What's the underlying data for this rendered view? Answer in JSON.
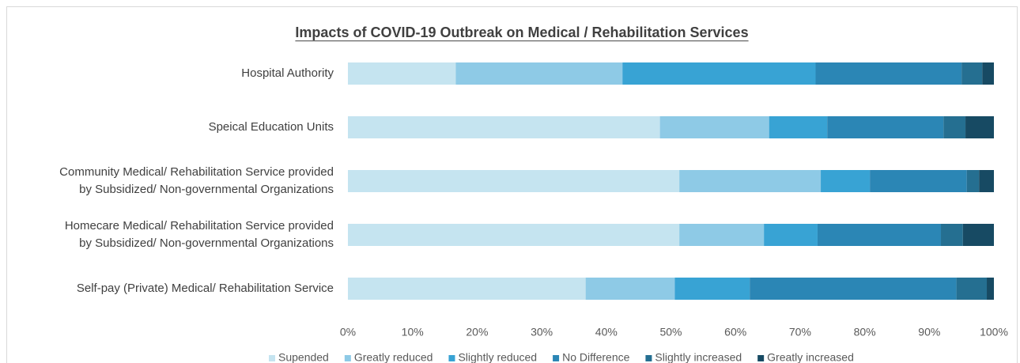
{
  "chart_data": {
    "type": "stacked_barh",
    "title": "Impacts of COVID-19 Outbreak on Medical / Rehabilitation Services",
    "categories": [
      "Hospital Authority",
      "Speical Education Units",
      "Community Medical/ Rehabilitation Service provided\nby Subsidized/ Non-governmental Organizations",
      "Homecare Medical/ Rehabilitation Service provided\nby Subsidized/ Non-governmental Organizations",
      "Self-pay (Private) Medical/ Rehabilitation Service"
    ],
    "series": [
      {
        "name": "Supended",
        "color": "#c5e4f0",
        "values": [
          16.7,
          48.3,
          51.3,
          51.3,
          36.8
        ]
      },
      {
        "name": "Greatly reduced",
        "color": "#8ecae6",
        "values": [
          25.8,
          16.9,
          21.9,
          13.1,
          13.8
        ]
      },
      {
        "name": "Slightly reduced",
        "color": "#38a3d4",
        "values": [
          29.9,
          9.0,
          7.6,
          8.3,
          11.6
        ]
      },
      {
        "name": "No Difference",
        "color": "#2b86b5",
        "values": [
          22.6,
          18.0,
          15.0,
          19.1,
          32.0
        ]
      },
      {
        "name": "Slightly increased",
        "color": "#256f91",
        "values": [
          3.2,
          3.4,
          1.9,
          3.4,
          4.7
        ]
      },
      {
        "name": "Greatly increased",
        "color": "#174a63",
        "values": [
          1.8,
          4.4,
          2.3,
          4.8,
          1.1
        ]
      }
    ],
    "xlim": [
      0,
      100
    ],
    "xticks": [
      {
        "value": 0,
        "label": "0%"
      },
      {
        "value": 10,
        "label": "10%"
      },
      {
        "value": 20,
        "label": "20%"
      },
      {
        "value": 30,
        "label": "30%"
      },
      {
        "value": 40,
        "label": "40%"
      },
      {
        "value": 50,
        "label": "50%"
      },
      {
        "value": 60,
        "label": "60%"
      },
      {
        "value": 70,
        "label": "70%"
      },
      {
        "value": 80,
        "label": "80%"
      },
      {
        "value": 90,
        "label": "90%"
      },
      {
        "value": 100,
        "label": "100%"
      }
    ],
    "grid": false,
    "legend": "bottom"
  }
}
